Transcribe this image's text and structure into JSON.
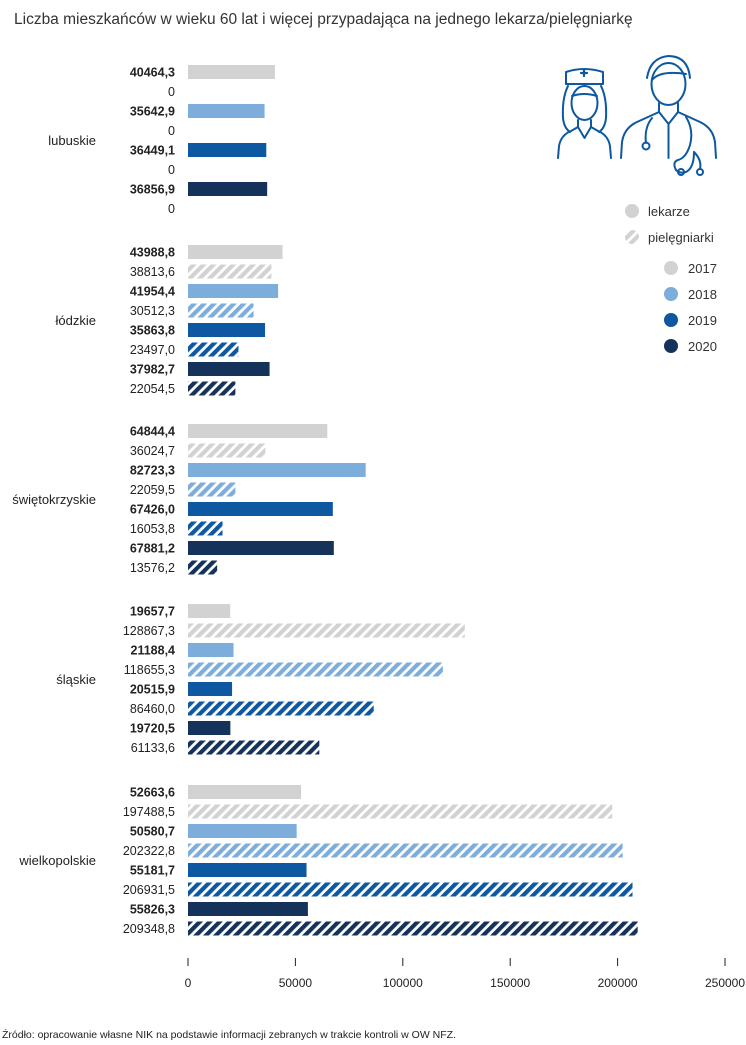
{
  "chart_data": {
    "type": "bar",
    "title": "Liczba mieszkańców w wieku 60 lat i więcej przypadająca na jednego lekarza/pielęgniarkę",
    "source": "Źródło: opracowanie własne NIK na podstawie informacji zebranych w trakcie kontroli w OW NFZ.",
    "xlim": [
      0,
      250000
    ],
    "xticks": [
      "0",
      "50000",
      "100000",
      "150000",
      "200000",
      "250000"
    ],
    "legend": {
      "types": [
        "lekarze",
        "pielęgniarki"
      ],
      "years": [
        "2017",
        "2018",
        "2019",
        "2020"
      ],
      "placement": "top-right"
    },
    "colors": {
      "2017": "#d2d2d2",
      "2018": "#7daddb",
      "2019": "#0d58a0",
      "2020": "#15335a"
    },
    "regions": [
      {
        "name": "lubuskie",
        "bars": [
          {
            "year": "2017",
            "type": "lekarze",
            "value": 40464.3,
            "label": "40464,3"
          },
          {
            "year": "2017",
            "type": "pielęgniarki",
            "value": 0,
            "label": "0"
          },
          {
            "year": "2018",
            "type": "lekarze",
            "value": 35642.9,
            "label": "35642,9"
          },
          {
            "year": "2018",
            "type": "pielęgniarki",
            "value": 0,
            "label": "0"
          },
          {
            "year": "2019",
            "type": "lekarze",
            "value": 36449.1,
            "label": "36449,1"
          },
          {
            "year": "2019",
            "type": "pielęgniarki",
            "value": 0,
            "label": "0"
          },
          {
            "year": "2020",
            "type": "lekarze",
            "value": 36856.9,
            "label": "36856,9"
          },
          {
            "year": "2020",
            "type": "pielęgniarki",
            "value": 0,
            "label": "0"
          }
        ]
      },
      {
        "name": "łódzkie",
        "bars": [
          {
            "year": "2017",
            "type": "lekarze",
            "value": 43988.8,
            "label": "43988,8"
          },
          {
            "year": "2017",
            "type": "pielęgniarki",
            "value": 38813.6,
            "label": "38813,6"
          },
          {
            "year": "2018",
            "type": "lekarze",
            "value": 41954.4,
            "label": "41954,4"
          },
          {
            "year": "2018",
            "type": "pielęgniarki",
            "value": 30512.3,
            "label": "30512,3"
          },
          {
            "year": "2019",
            "type": "lekarze",
            "value": 35863.8,
            "label": "35863,8"
          },
          {
            "year": "2019",
            "type": "pielęgniarki",
            "value": 23497.0,
            "label": "23497,0"
          },
          {
            "year": "2020",
            "type": "lekarze",
            "value": 37982.7,
            "label": "37982,7"
          },
          {
            "year": "2020",
            "type": "pielęgniarki",
            "value": 22054.5,
            "label": "22054,5"
          }
        ]
      },
      {
        "name": "świętokrzyskie",
        "bars": [
          {
            "year": "2017",
            "type": "lekarze",
            "value": 64844.4,
            "label": "64844,4"
          },
          {
            "year": "2017",
            "type": "pielęgniarki",
            "value": 36024.7,
            "label": "36024,7"
          },
          {
            "year": "2018",
            "type": "lekarze",
            "value": 82723.3,
            "label": "82723,3"
          },
          {
            "year": "2018",
            "type": "pielęgniarki",
            "value": 22059.5,
            "label": "22059,5"
          },
          {
            "year": "2019",
            "type": "lekarze",
            "value": 67426.0,
            "label": "67426,0"
          },
          {
            "year": "2019",
            "type": "pielęgniarki",
            "value": 16053.8,
            "label": "16053,8"
          },
          {
            "year": "2020",
            "type": "lekarze",
            "value": 67881.2,
            "label": "67881,2"
          },
          {
            "year": "2020",
            "type": "pielęgniarki",
            "value": 13576.2,
            "label": "13576,2"
          }
        ]
      },
      {
        "name": "śląskie",
        "bars": [
          {
            "year": "2017",
            "type": "lekarze",
            "value": 19657.7,
            "label": "19657,7"
          },
          {
            "year": "2017",
            "type": "pielęgniarki",
            "value": 128867.3,
            "label": "128867,3"
          },
          {
            "year": "2018",
            "type": "lekarze",
            "value": 21188.4,
            "label": "21188,4"
          },
          {
            "year": "2018",
            "type": "pielęgniarki",
            "value": 118655.3,
            "label": "118655,3"
          },
          {
            "year": "2019",
            "type": "lekarze",
            "value": 20515.9,
            "label": "20515,9"
          },
          {
            "year": "2019",
            "type": "pielęgniarki",
            "value": 86460.0,
            "label": "86460,0"
          },
          {
            "year": "2020",
            "type": "lekarze",
            "value": 19720.5,
            "label": "19720,5"
          },
          {
            "year": "2020",
            "type": "pielęgniarki",
            "value": 61133.6,
            "label": "61133,6"
          }
        ]
      },
      {
        "name": "wielkopolskie",
        "bars": [
          {
            "year": "2017",
            "type": "lekarze",
            "value": 52663.6,
            "label": "52663,6"
          },
          {
            "year": "2017",
            "type": "pielęgniarki",
            "value": 197488.5,
            "label": "197488,5"
          },
          {
            "year": "2018",
            "type": "lekarze",
            "value": 50580.7,
            "label": "50580,7"
          },
          {
            "year": "2018",
            "type": "pielęgniarki",
            "value": 202322.8,
            "label": "202322,8"
          },
          {
            "year": "2019",
            "type": "lekarze",
            "value": 55181.7,
            "label": "55181,7"
          },
          {
            "year": "2019",
            "type": "pielęgniarki",
            "value": 206931.5,
            "label": "206931,5"
          },
          {
            "year": "2020",
            "type": "lekarze",
            "value": 55826.3,
            "label": "55826,3"
          },
          {
            "year": "2020",
            "type": "pielęgniarki",
            "value": 209348.8,
            "label": "209348,8"
          }
        ]
      }
    ]
  }
}
